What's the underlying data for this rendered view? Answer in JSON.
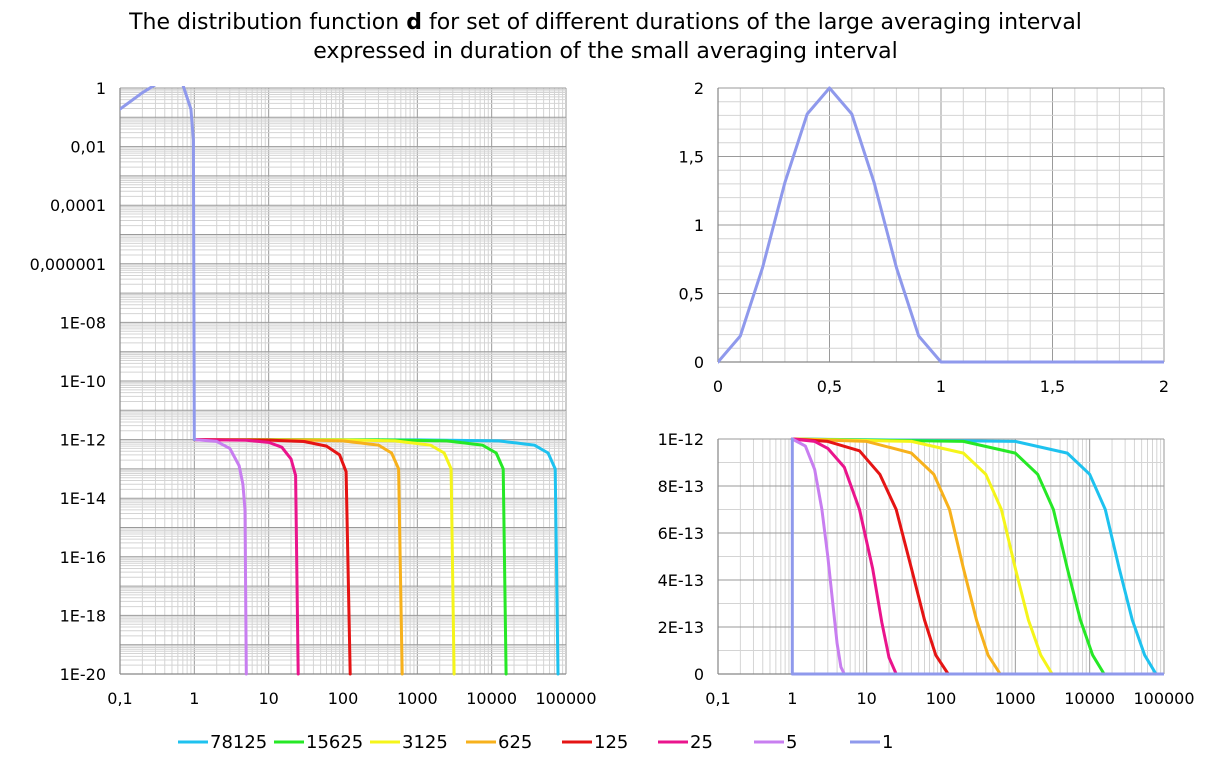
{
  "title": {
    "line1_before": "The distribution function ",
    "line1_bold": "d",
    "line1_after": " for set of different durations of the large averaging interval",
    "line2": "expressed in duration of the small averaging interval"
  },
  "series_colors": {
    "78125": "#1ec2ef",
    "15625": "#26e826",
    "3125": "#f5f51a",
    "625": "#f7b11c",
    "125": "#e51414",
    "25": "#ea148c",
    "5": "#c87ef0",
    "1": "#8f99ec"
  },
  "chart_data": [
    {
      "type": "line",
      "panel": "left",
      "x_scale": "log",
      "y_scale": "log",
      "xlim": [
        0.1,
        100000
      ],
      "ylim": [
        1e-20,
        1
      ],
      "xticks": [
        "0,1",
        "1",
        "10",
        "100",
        "1000",
        "10000",
        "100000"
      ],
      "yticks": [
        "1",
        "0,01",
        "0,0001",
        "0,000001",
        "1E-08",
        "1E-10",
        "1E-12",
        "1E-14",
        "1E-16",
        "1E-18",
        "1E-20"
      ],
      "grid": true,
      "series": [
        {
          "name": "1",
          "x": [
            0.1,
            0.2,
            0.3,
            0.5,
            0.7,
            0.9,
            0.97,
            1.0
          ],
          "y": [
            0.19,
            0.69,
            1.31,
            2.0,
            1.31,
            0.19,
            0.017,
            1e-12
          ]
        },
        {
          "name": "5",
          "x": [
            1,
            2,
            3,
            4,
            4.5,
            4.8,
            5
          ],
          "y": [
            1e-12,
            8.7e-13,
            5e-13,
            1.3e-13,
            3e-14,
            4e-15,
            1e-20
          ]
        },
        {
          "name": "25",
          "x": [
            1,
            5,
            10,
            15,
            20,
            23,
            25
          ],
          "y": [
            1e-12,
            9.5e-13,
            8e-13,
            5.5e-13,
            2.2e-13,
            6e-14,
            1e-20
          ]
        },
        {
          "name": "125",
          "x": [
            1,
            10,
            30,
            60,
            90,
            110,
            125
          ],
          "y": [
            1e-12,
            9.6e-13,
            8.6e-13,
            6e-13,
            3e-13,
            8e-14,
            1e-20
          ]
        },
        {
          "name": "625",
          "x": [
            1,
            30,
            100,
            300,
            450,
            560,
            625
          ],
          "y": [
            1e-12,
            9.7e-13,
            9e-13,
            6.5e-13,
            3.5e-13,
            1e-13,
            1e-20
          ]
        },
        {
          "name": "3125",
          "x": [
            1,
            100,
            500,
            1500,
            2300,
            2850,
            3125
          ],
          "y": [
            1e-12,
            9.8e-13,
            9e-13,
            6.5e-13,
            3.5e-13,
            1e-13,
            1e-20
          ]
        },
        {
          "name": "15625",
          "x": [
            1,
            300,
            2500,
            7500,
            11500,
            14300,
            15625
          ],
          "y": [
            1e-12,
            9.8e-13,
            9e-13,
            6.5e-13,
            3.5e-13,
            1e-13,
            1e-20
          ]
        },
        {
          "name": "78125",
          "x": [
            1,
            1000,
            12500,
            37500,
            57500,
            71500,
            78125
          ],
          "y": [
            1e-12,
            9.8e-13,
            9e-13,
            6.5e-13,
            3.5e-13,
            1e-13,
            1e-20
          ]
        }
      ]
    },
    {
      "type": "line",
      "panel": "top-right",
      "x_scale": "linear",
      "y_scale": "linear",
      "xlim": [
        0,
        2
      ],
      "ylim": [
        0,
        2
      ],
      "xticks": [
        "0",
        "0,5",
        "1",
        "1,5",
        "2"
      ],
      "yticks": [
        "2",
        "1,5",
        "1",
        "0,5",
        "0"
      ],
      "grid": true,
      "series": [
        {
          "name": "1",
          "x": [
            0,
            0.1,
            0.2,
            0.3,
            0.4,
            0.5,
            0.6,
            0.7,
            0.8,
            0.9,
            1.0,
            2.0
          ],
          "y": [
            0,
            0.19,
            0.69,
            1.31,
            1.81,
            2.0,
            1.81,
            1.31,
            0.69,
            0.19,
            0,
            0
          ]
        }
      ]
    },
    {
      "type": "line",
      "panel": "bottom-right",
      "x_scale": "log",
      "y_scale": "linear",
      "xlim": [
        0.1,
        100000
      ],
      "ylim": [
        0,
        1e-12
      ],
      "xticks": [
        "0,1",
        "1",
        "10",
        "100",
        "1000",
        "10000",
        "100000"
      ],
      "yticks": [
        "1E-12",
        "8E-13",
        "6E-13",
        "4E-13",
        "2E-13",
        "0"
      ],
      "grid": true,
      "series": [
        {
          "name": "1",
          "x": [
            1,
            1,
            100000
          ],
          "y": [
            1e-12,
            0,
            0
          ]
        },
        {
          "name": "5",
          "x": [
            1,
            1.5,
            2,
            2.5,
            3,
            3.5,
            4,
            4.5,
            5
          ],
          "y": [
            1e-12,
            9.7e-13,
            8.7e-13,
            7e-13,
            5e-13,
            3e-13,
            1.3e-13,
            3e-14,
            0
          ]
        },
        {
          "name": "25",
          "x": [
            1,
            2,
            3,
            5,
            8,
            12,
            16,
            20,
            25
          ],
          "y": [
            1e-12,
            9.9e-13,
            9.6e-13,
            8.8e-13,
            7e-13,
            4.5e-13,
            2.2e-13,
            7e-14,
            0
          ]
        },
        {
          "name": "125",
          "x": [
            1,
            3,
            8,
            15,
            25,
            40,
            60,
            85,
            125
          ],
          "y": [
            1e-12,
            9.9e-13,
            9.5e-13,
            8.5e-13,
            7e-13,
            4.5e-13,
            2.3e-13,
            8e-14,
            0
          ]
        },
        {
          "name": "625",
          "x": [
            1,
            10,
            40,
            80,
            130,
            200,
            300,
            430,
            625
          ],
          "y": [
            1e-12,
            9.9e-13,
            9.4e-13,
            8.5e-13,
            7e-13,
            4.5e-13,
            2.3e-13,
            8e-14,
            0
          ]
        },
        {
          "name": "3125",
          "x": [
            1,
            40,
            200,
            400,
            650,
            1000,
            1500,
            2200,
            3125
          ],
          "y": [
            1e-12,
            9.9e-13,
            9.4e-13,
            8.5e-13,
            7e-13,
            4.5e-13,
            2.3e-13,
            8e-14,
            0
          ]
        },
        {
          "name": "15625",
          "x": [
            1,
            200,
            1000,
            2000,
            3250,
            5000,
            7500,
            11000,
            15625
          ],
          "y": [
            1e-12,
            9.9e-13,
            9.4e-13,
            8.5e-13,
            7e-13,
            4.5e-13,
            2.3e-13,
            8e-14,
            0
          ]
        },
        {
          "name": "78125",
          "x": [
            1,
            1000,
            5000,
            10000,
            16250,
            25000,
            37500,
            55000,
            78125
          ],
          "y": [
            1e-12,
            9.9e-13,
            9.4e-13,
            8.5e-13,
            7e-13,
            4.5e-13,
            2.3e-13,
            8e-14,
            0
          ]
        }
      ]
    }
  ],
  "legend": {
    "placement": "bottom",
    "entries": [
      "78125",
      "15625",
      "3125",
      "625",
      "125",
      "25",
      "5",
      "1"
    ]
  }
}
